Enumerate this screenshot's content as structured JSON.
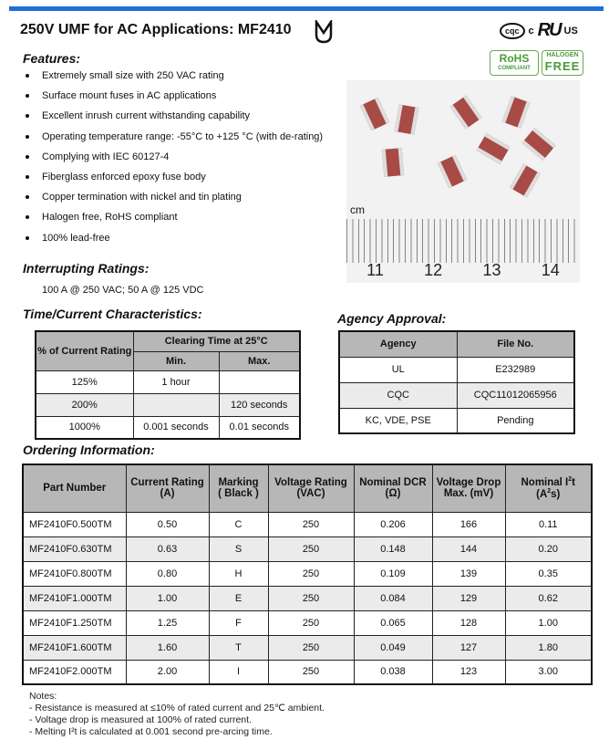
{
  "title": "250V UMF for AC Applications: MF2410",
  "certifications": {
    "cqc": "CQC",
    "ul_c": "c",
    "ul_us": "US",
    "rohs": "RoHS",
    "rohs_sub": "COMPLIANT",
    "halogen_top": "HALOGEN",
    "halogen_free": "FREE"
  },
  "features": {
    "heading": "Features:",
    "items": [
      "Extremely small  size with 250 VAC rating",
      "Surface mount fuses in AC applications",
      "Excellent inrush current withstanding capability",
      "Operating temperature range: -55°C to +125 °C (with de-rating)",
      "Complying with IEC 60127-4",
      "Fiberglass enforced epoxy fuse body",
      "Copper termination with nickel and tin plating",
      "Halogen free, RoHS compliant",
      "100% lead-free"
    ]
  },
  "photo": {
    "unit_label": "cm",
    "ruler_labels": [
      "11",
      "12",
      "13",
      "14"
    ]
  },
  "interrupting": {
    "heading": "Interrupting  Ratings:",
    "value": "100 A @ 250 VAC; 50 A @ 125 VDC"
  },
  "time_current": {
    "heading": "Time/Current Characteristics:",
    "col_rating": "% of Current  Rating",
    "col_group": "Clearing Time at 25°C",
    "col_min": "Min.",
    "col_max": "Max.",
    "rows": [
      {
        "rating": "125%",
        "min": "1 hour",
        "max": ""
      },
      {
        "rating": "200%",
        "min": "",
        "max": "120 seconds"
      },
      {
        "rating": "1000%",
        "min": "0.001 seconds",
        "max": "0.01 seconds"
      }
    ]
  },
  "agency": {
    "heading": "Agency Approval:",
    "col_agency": "Agency",
    "col_file": "File No.",
    "rows": [
      {
        "agency": "UL",
        "file": "E232989"
      },
      {
        "agency": "CQC",
        "file": "CQC11012065956"
      },
      {
        "agency": "KC, VDE, PSE",
        "file": "Pending"
      }
    ]
  },
  "ordering": {
    "heading": "Ordering Information:",
    "headers": {
      "part": "Part Number",
      "current_1": "Current Rating",
      "current_2": "(A)",
      "marking_1": "Marking",
      "marking_2": "( Black )",
      "voltage_1": "Voltage Rating",
      "voltage_2": "(VAC)",
      "dcr_1": "Nominal DCR",
      "dcr_2": "(Ω)",
      "drop_1": "Voltage Drop",
      "drop_2": "Max. (mV)",
      "i2t_1a": "Nominal I",
      "i2t_1sup": "2",
      "i2t_1b": "t",
      "i2t_2a": "(A",
      "i2t_2sup": "2",
      "i2t_2b": "s)"
    },
    "rows": [
      {
        "part": "MF2410F0.500TM",
        "current": "0.50",
        "marking": "C",
        "voltage": "250",
        "dcr": "0.206",
        "drop": "166",
        "i2t": "0.11"
      },
      {
        "part": "MF2410F0.630TM",
        "current": "0.63",
        "marking": "S",
        "voltage": "250",
        "dcr": "0.148",
        "drop": "144",
        "i2t": "0.20"
      },
      {
        "part": "MF2410F0.800TM",
        "current": "0.80",
        "marking": "H",
        "voltage": "250",
        "dcr": "0.109",
        "drop": "139",
        "i2t": "0.35"
      },
      {
        "part": "MF2410F1.000TM",
        "current": "1.00",
        "marking": "E",
        "voltage": "250",
        "dcr": "0.084",
        "drop": "129",
        "i2t": "0.62"
      },
      {
        "part": "MF2410F1.250TM",
        "current": "1.25",
        "marking": "F",
        "voltage": "250",
        "dcr": "0.065",
        "drop": "128",
        "i2t": "1.00"
      },
      {
        "part": "MF2410F1.600TM",
        "current": "1.60",
        "marking": "T",
        "voltage": "250",
        "dcr": "0.049",
        "drop": "127",
        "i2t": "1.80"
      },
      {
        "part": "MF2410F2.000TM",
        "current": "2.00",
        "marking": "I",
        "voltage": "250",
        "dcr": "0.038",
        "drop": "123",
        "i2t": "3.00"
      }
    ]
  },
  "notes": {
    "heading": "Notes:",
    "lines": [
      "- Resistance is measured at  ≤10% of rated current and 25℃ ambient.",
      "- Voltage drop is measured at 100% of rated current.",
      "- Melting I²t is calculated at  0.001 second  pre-arcing time."
    ]
  }
}
